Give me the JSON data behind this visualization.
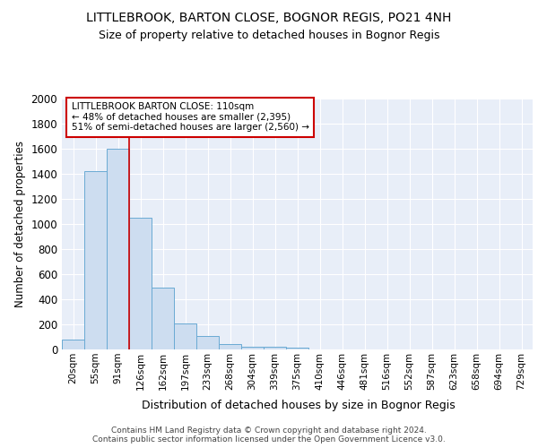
{
  "title": "LITTLEBROOK, BARTON CLOSE, BOGNOR REGIS, PO21 4NH",
  "subtitle": "Size of property relative to detached houses in Bognor Regis",
  "xlabel": "Distribution of detached houses by size in Bognor Regis",
  "ylabel": "Number of detached properties",
  "categories": [
    "20sqm",
    "55sqm",
    "91sqm",
    "126sqm",
    "162sqm",
    "197sqm",
    "233sqm",
    "268sqm",
    "304sqm",
    "339sqm",
    "375sqm",
    "410sqm",
    "446sqm",
    "481sqm",
    "516sqm",
    "552sqm",
    "587sqm",
    "623sqm",
    "658sqm",
    "694sqm",
    "729sqm"
  ],
  "bar_heights": [
    80,
    1420,
    1600,
    1050,
    490,
    205,
    105,
    40,
    25,
    20,
    15,
    0,
    0,
    0,
    0,
    0,
    0,
    0,
    0,
    0,
    0
  ],
  "bar_color": "#cdddf0",
  "bar_edge_color": "#6aaad4",
  "background_color": "#e8eef8",
  "grid_color": "#ffffff",
  "red_line_x": 2.5,
  "annotation_text": "LITTLEBROOK BARTON CLOSE: 110sqm\n← 48% of detached houses are smaller (2,395)\n51% of semi-detached houses are larger (2,560) →",
  "annotation_box_color": "#ffffff",
  "annotation_edge_color": "#cc0000",
  "footer_text": "Contains HM Land Registry data © Crown copyright and database right 2024.\nContains public sector information licensed under the Open Government Licence v3.0.",
  "ylim": [
    0,
    2000
  ],
  "yticks": [
    0,
    200,
    400,
    600,
    800,
    1000,
    1200,
    1400,
    1600,
    1800,
    2000
  ]
}
